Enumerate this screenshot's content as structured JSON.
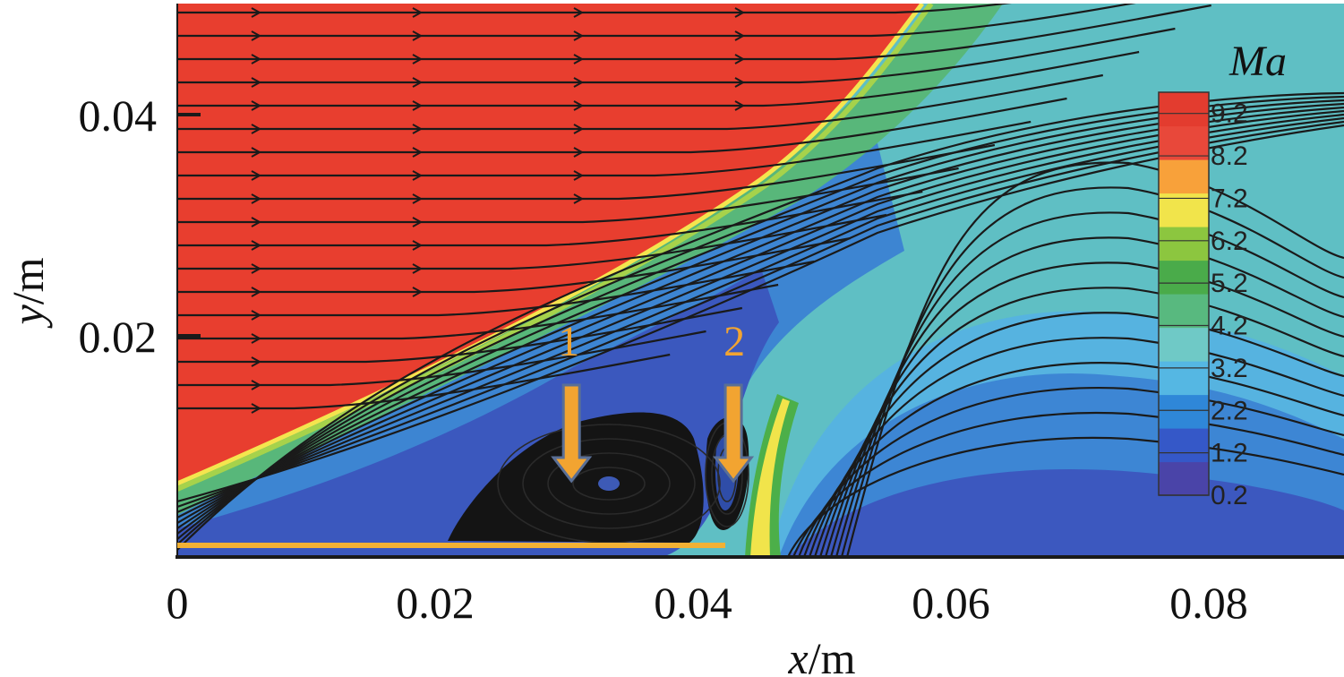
{
  "chart_data": {
    "type": "heatmap",
    "description_fields": {
      "quantity": "Mach number contour with streamlines"
    },
    "xlabel_var": "x",
    "xlabel_unit": "/m",
    "ylabel_var": "y",
    "ylabel_unit": "/m",
    "xlim": [
      0,
      0.09
    ],
    "ylim": [
      0,
      0.049
    ],
    "x_ticks": [
      0,
      0.02,
      0.04,
      0.06,
      0.08
    ],
    "x_tick_labels": [
      "0",
      "0.02",
      "0.04",
      "0.06",
      "0.08"
    ],
    "y_ticks": [
      0.02,
      0.04
    ],
    "y_tick_labels": [
      "0.02",
      "0.04"
    ],
    "colorbar": {
      "title": "Ma",
      "min": 0.2,
      "max": 9.7,
      "levels": [
        0.2,
        1.2,
        2.2,
        3.2,
        4.2,
        5.2,
        6.2,
        7.2,
        8.2,
        9.2
      ],
      "level_labels": [
        "0.2",
        "1.2",
        "2.2",
        "3.2",
        "4.2",
        "5.2",
        "6.2",
        "7.2",
        "8.2",
        "9.2"
      ],
      "colors": [
        "#4a44a8",
        "#3558c8",
        "#2f87d8",
        "#55b7e3",
        "#6fc9c6",
        "#58b97f",
        "#4aab4a",
        "#8cc63f",
        "#f1e44b",
        "#f8a13a",
        "#e8483a",
        "#e33c2f"
      ]
    },
    "annotations": [
      {
        "label": "1",
        "x": 0.0305,
        "y": 0.0195,
        "arrow_to_y": 0.0085
      },
      {
        "label": "2",
        "x": 0.0432,
        "y": 0.0195,
        "arrow_to_y": 0.0085
      }
    ],
    "wall_segment": {
      "x_start": 0,
      "x_end": 0.0425,
      "y": 0.0012
    },
    "oblique_shock": {
      "from": [
        0,
        0.007
      ],
      "to": [
        0.058,
        0.049
      ]
    },
    "separation_regions": [
      {
        "name": "main",
        "x_center": 0.0325,
        "y_center": 0.0055
      },
      {
        "name": "secondary",
        "x_center": 0.0418,
        "y_center": 0.007
      }
    ]
  }
}
